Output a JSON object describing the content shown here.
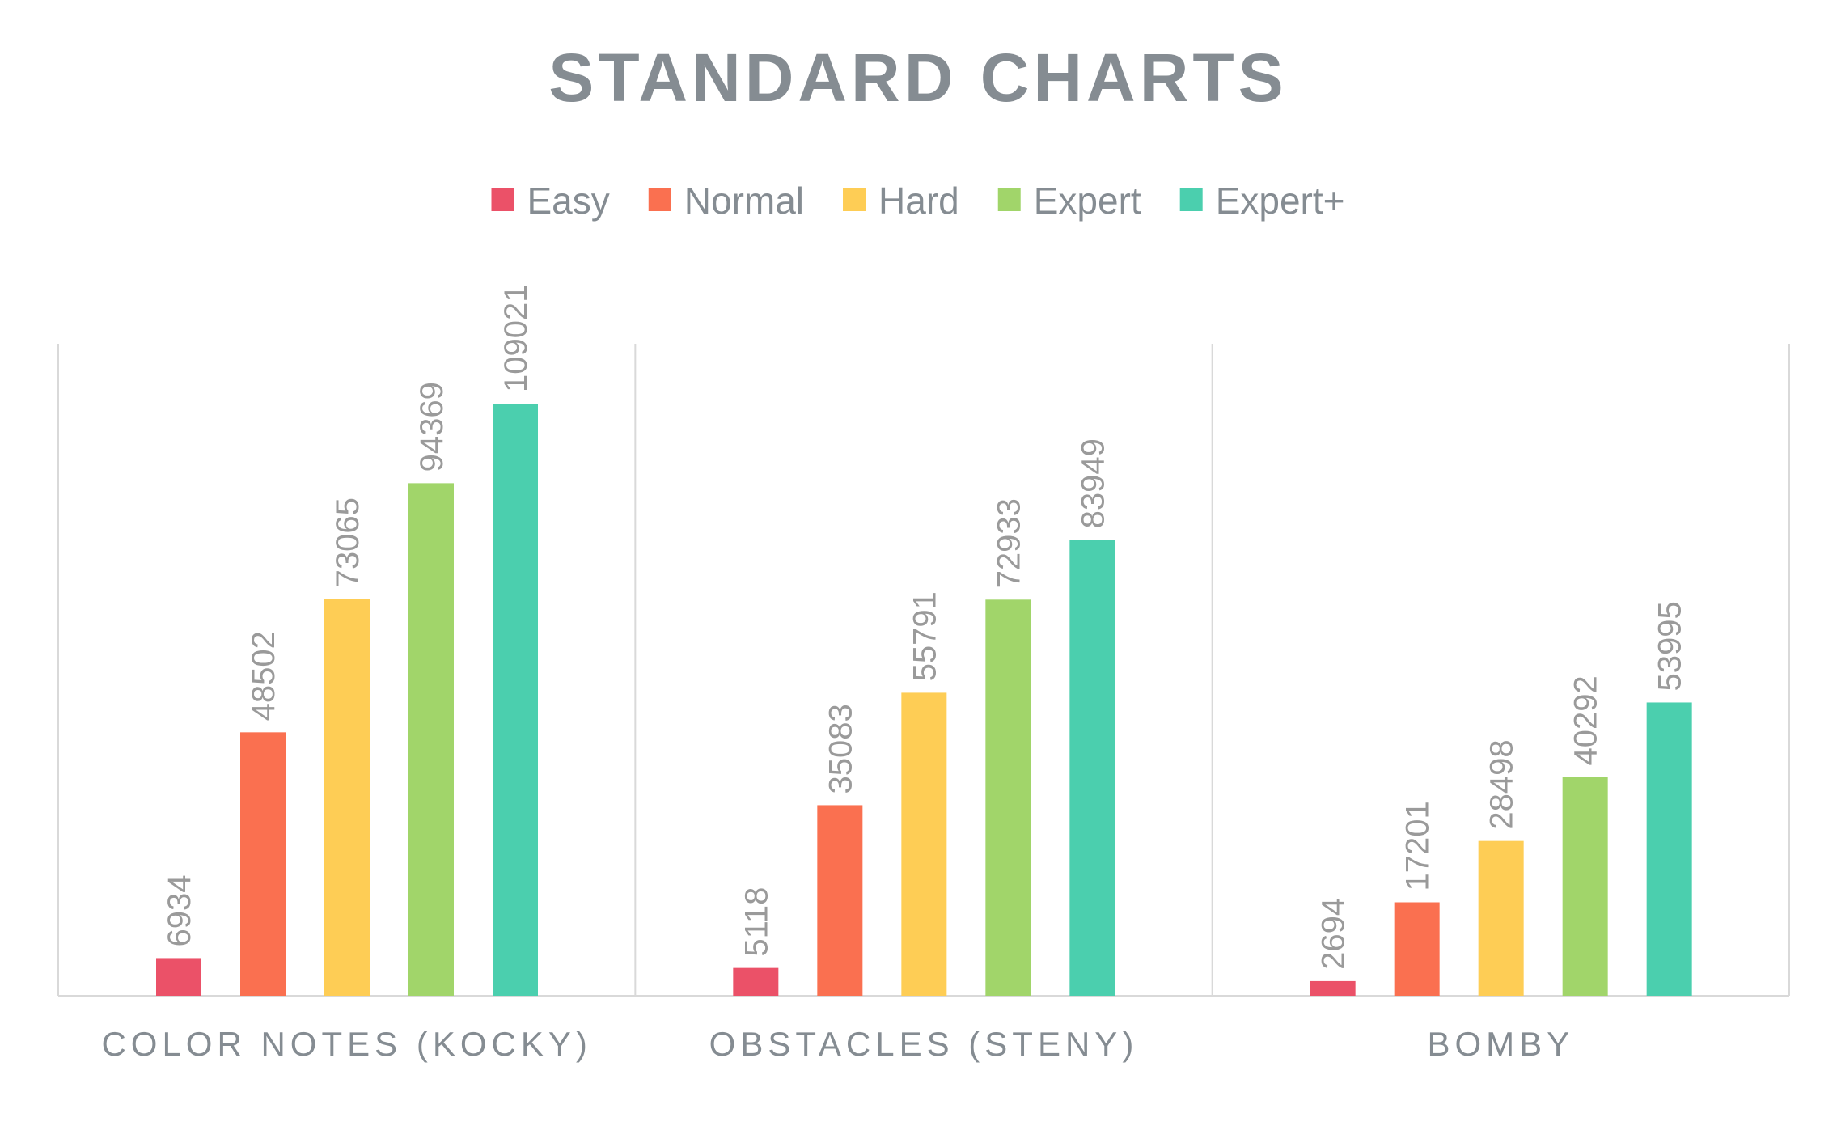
{
  "chart_data": {
    "type": "bar",
    "title": "STANDARD CHARTS",
    "categories": [
      "COLOR NOTES (KOCKY)",
      "OBSTACLES (STENY)",
      "BOMBY"
    ],
    "series": [
      {
        "name": "Easy",
        "color": "#eb5168",
        "values": [
          6934,
          5118,
          2694
        ]
      },
      {
        "name": "Normal",
        "color": "#fa7050",
        "values": [
          48502,
          35083,
          17201
        ]
      },
      {
        "name": "Hard",
        "color": "#fecd55",
        "values": [
          73065,
          55791,
          28498
        ]
      },
      {
        "name": "Expert",
        "color": "#a1d56a",
        "values": [
          94369,
          72933,
          40292
        ]
      },
      {
        "name": "Expert+",
        "color": "#4bcfae",
        "values": [
          109021,
          83949,
          53995
        ]
      }
    ],
    "ylim": [
      0,
      120000
    ],
    "grid": "vertical category separators",
    "legend": "top",
    "data_labels": true
  }
}
